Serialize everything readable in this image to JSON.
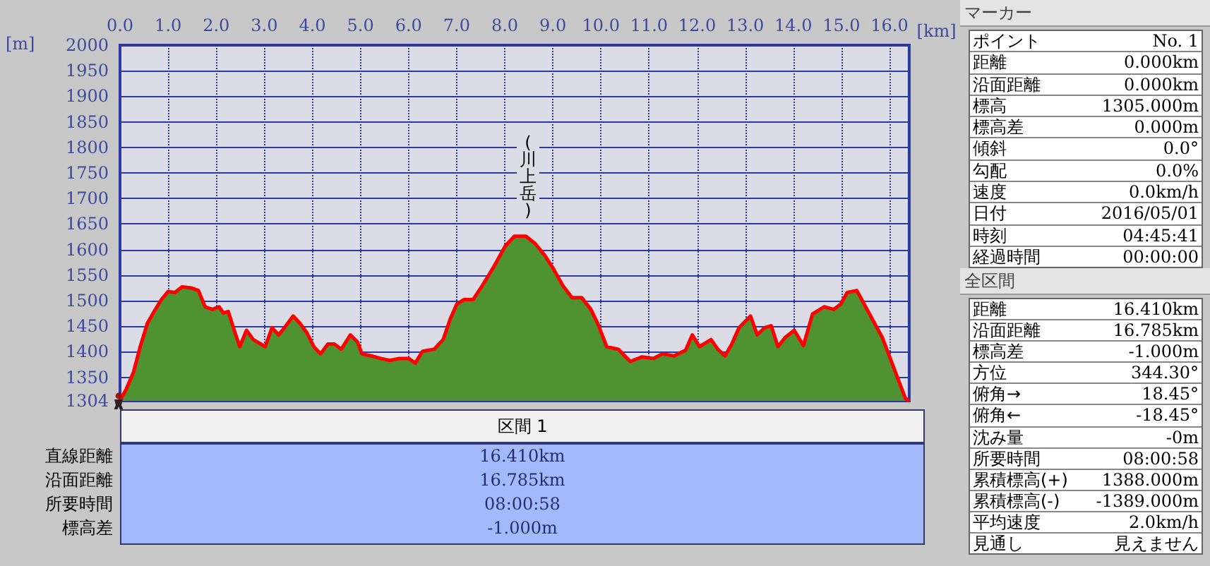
{
  "chart_data": [
    {
      "type": "area",
      "xlabel": "[km]",
      "ylabel": "[m]",
      "xlim": [
        0,
        16.41
      ],
      "ylim": [
        1304,
        2000
      ],
      "xticks": [
        {
          "value": 0,
          "label": "0.0"
        },
        {
          "value": 1,
          "label": "1.0"
        },
        {
          "value": 2,
          "label": "2.0"
        },
        {
          "value": 3,
          "label": "3.0"
        },
        {
          "value": 4,
          "label": "4.0"
        },
        {
          "value": 5,
          "label": "5.0"
        },
        {
          "value": 6,
          "label": "6.0"
        },
        {
          "value": 7,
          "label": "7.0"
        },
        {
          "value": 8,
          "label": "8.0"
        },
        {
          "value": 9,
          "label": "9.0"
        },
        {
          "value": 10,
          "label": "10.0"
        },
        {
          "value": 11,
          "label": "11.0"
        },
        {
          "value": 12,
          "label": "12.0"
        },
        {
          "value": 13,
          "label": "13.0"
        },
        {
          "value": 14,
          "label": "14.0"
        },
        {
          "value": 15,
          "label": "15.0"
        },
        {
          "value": 16,
          "label": "16.0"
        }
      ],
      "yticks": [
        1304,
        1350,
        1400,
        1450,
        1500,
        1550,
        1600,
        1650,
        1700,
        1750,
        1800,
        1850,
        1900,
        1950,
        2000
      ],
      "grid": true,
      "marker": "none",
      "x": [
        0,
        0.13,
        0.28,
        0.42,
        0.57,
        0.71,
        0.86,
        1.0,
        1.14,
        1.29,
        1.48,
        1.63,
        1.77,
        1.92,
        2.06,
        2.15,
        2.25,
        2.39,
        2.49,
        2.63,
        2.77,
        3.02,
        3.16,
        3.3,
        3.45,
        3.6,
        3.74,
        3.88,
        4.03,
        4.17,
        4.32,
        4.46,
        4.6,
        4.79,
        4.94,
        5.03,
        5.22,
        5.42,
        5.61,
        5.81,
        6.0,
        6.14,
        6.29,
        6.53,
        6.72,
        6.87,
        7.0,
        7.15,
        7.34,
        7.53,
        7.77,
        8.01,
        8.2,
        8.44,
        8.63,
        8.83,
        9.02,
        9.21,
        9.4,
        9.6,
        9.79,
        9.93,
        10.12,
        10.36,
        10.61,
        10.85,
        11.09,
        11.28,
        11.52,
        11.76,
        11.9,
        12.05,
        12.29,
        12.43,
        12.58,
        12.72,
        12.87,
        13.11,
        13.25,
        13.4,
        13.54,
        13.68,
        13.83,
        14.02,
        14.21,
        14.4,
        14.64,
        14.84,
        14.98,
        15.12,
        15.32,
        15.85,
        16.33,
        16.41
      ],
      "series": [
        {
          "color": "#4e9232",
          "values": [
            1305,
            1327,
            1360,
            1410,
            1456,
            1479,
            1502,
            1518,
            1516,
            1527,
            1525,
            1520,
            1488,
            1483,
            1488,
            1476,
            1479,
            1438,
            1410,
            1442,
            1424,
            1410,
            1447,
            1433,
            1451,
            1470,
            1456,
            1438,
            1410,
            1396,
            1415,
            1415,
            1405,
            1433,
            1419,
            1396,
            1392,
            1387,
            1383,
            1387,
            1387,
            1378,
            1401,
            1405,
            1424,
            1465,
            1493,
            1502,
            1502,
            1529,
            1566,
            1607,
            1626,
            1626,
            1612,
            1589,
            1561,
            1529,
            1506,
            1506,
            1483,
            1456,
            1410,
            1405,
            1381,
            1390,
            1387,
            1396,
            1392,
            1403,
            1433,
            1410,
            1424,
            1405,
            1392,
            1415,
            1447,
            1470,
            1433,
            1447,
            1451,
            1410,
            1428,
            1442,
            1412,
            1474,
            1488,
            1483,
            1493,
            1516,
            1520,
            1428,
            1309,
            1304
          ]
        }
      ],
      "annotations": [
        "(川上岳)"
      ]
    },
    {
      "type": "other",
      "title": "区間 1",
      "categories": [
        "直線距離",
        "沿面距離",
        "所要時間",
        "標高差"
      ],
      "value_labels": [
        "16.410km",
        "16.785km",
        "08:00:58",
        "-1.000m"
      ]
    },
    {
      "type": "other",
      "title": "マーカー",
      "categories": [
        "ポイント",
        "距離",
        "沿面距離",
        "標高",
        "標高差",
        "傾斜",
        "勾配",
        "速度",
        "日付",
        "時刻",
        "経過時間"
      ],
      "value_labels": [
        "No. 1",
        "0.000km",
        "0.000km",
        "1305.000m",
        "0.000m",
        "0.0°",
        "0.0%",
        "0.0km/h",
        "2016/05/01",
        "04:45:41",
        "00:00:00"
      ]
    },
    {
      "type": "other",
      "title": "全区間",
      "categories": [
        "距離",
        "沿面距離",
        "標高差",
        "方位",
        "俯角→",
        "俯角←",
        "沈み量",
        "所要時間",
        "累積標高(+)",
        "累積標高(-)",
        "平均速度",
        "見通し"
      ],
      "value_labels": [
        "16.410km",
        "16.785km",
        "-1.000m",
        "344.30°",
        "18.45°",
        "-18.45°",
        "-0m",
        "08:00:58",
        "1388.000m",
        "-1389.000m",
        "2.0km/h",
        "見えません"
      ]
    }
  ]
}
